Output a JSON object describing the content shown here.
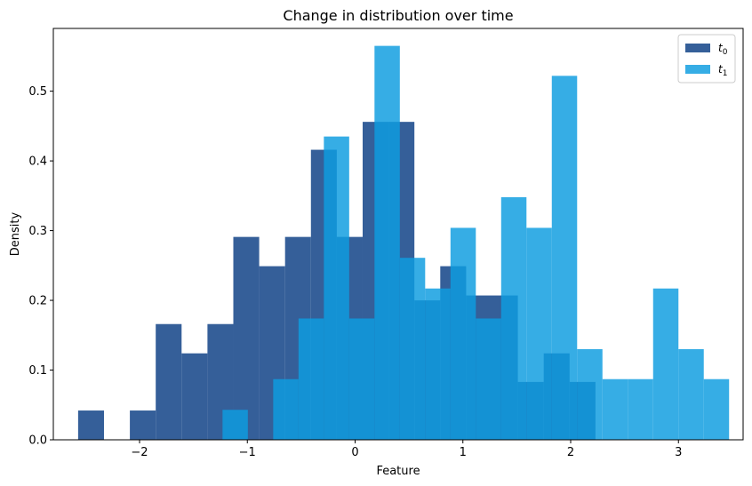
{
  "chart_data": {
    "type": "bar",
    "title": "Change in distribution over time",
    "xlabel": "Feature",
    "ylabel": "Density",
    "xlim": [
      -2.8,
      3.6
    ],
    "ylim": [
      0,
      0.59
    ],
    "xticks": [
      -2,
      -1,
      0,
      1,
      2,
      3
    ],
    "xtick_labels": [
      "−2",
      "−1",
      "0",
      "1",
      "2",
      "3"
    ],
    "yticks": [
      0.0,
      0.1,
      0.2,
      0.3,
      0.4,
      0.5
    ],
    "ytick_labels": [
      "0.0",
      "0.1",
      "0.2",
      "0.3",
      "0.4",
      "0.5"
    ],
    "legend_position": "top-right",
    "series": [
      {
        "name": "t0",
        "label_base": "t",
        "label_sub": "0",
        "color": "#1f4e8e",
        "opacity": 0.9,
        "bin_edges": [
          -2.57,
          -2.33,
          -2.09,
          -1.85,
          -1.61,
          -1.37,
          -1.13,
          -0.89,
          -0.65,
          -0.41,
          -0.17,
          0.07,
          0.31,
          0.55,
          0.79,
          1.03,
          1.27,
          1.51,
          1.75,
          1.99,
          2.23
        ],
        "values": [
          0.042,
          0.0,
          0.042,
          0.166,
          0.124,
          0.166,
          0.291,
          0.249,
          0.291,
          0.416,
          0.291,
          0.456,
          0.456,
          0.2,
          0.249,
          0.207,
          0.207,
          0.083,
          0.124,
          0.083
        ]
      },
      {
        "name": "t1",
        "label_base": "t",
        "label_sub": "1",
        "color": "#0d9ce0",
        "opacity": 0.83,
        "bin_edges": [
          -1.23,
          -0.995,
          -0.76,
          -0.525,
          -0.29,
          -0.055,
          0.18,
          0.415,
          0.65,
          0.885,
          1.12,
          1.355,
          1.59,
          1.825,
          2.06,
          2.295,
          2.53,
          2.765,
          3.0,
          3.235,
          3.47
        ],
        "values": [
          0.043,
          0.0,
          0.087,
          0.174,
          0.435,
          0.174,
          0.565,
          0.261,
          0.217,
          0.304,
          0.174,
          0.348,
          0.304,
          0.522,
          0.13,
          0.087,
          0.087,
          0.217,
          0.13,
          0.087
        ]
      }
    ]
  }
}
